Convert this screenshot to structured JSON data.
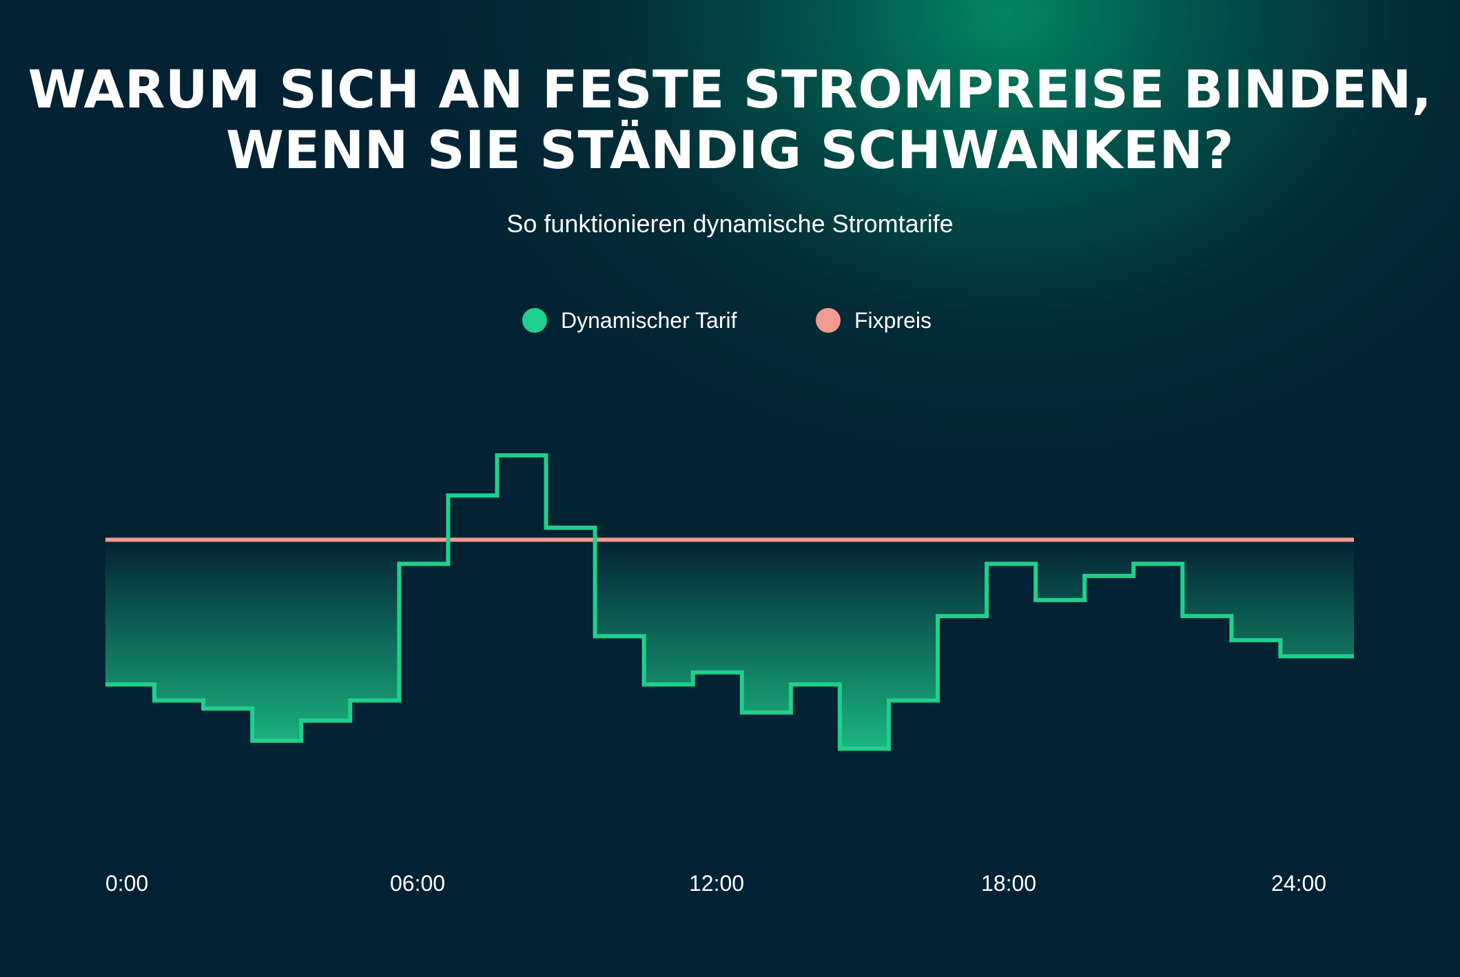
{
  "title": {
    "line1": "WARUM SICH AN FESTE STROMPREISE BINDEN,",
    "line2": "WENN SIE STÄNDIG SCHWANKEN?"
  },
  "subtitle": "So funktionieren dynamische Stromtarife",
  "legend": [
    {
      "label": "Dynamischer Tarif",
      "color": "#1fd08d"
    },
    {
      "label": "Fixpreis",
      "color": "#f39a91"
    }
  ],
  "colors": {
    "background": "#032233",
    "accent_glow": "#008c64",
    "dynamic_line": "#1fd08d",
    "fixed_line": "#f39a91",
    "text": "#ffffff"
  },
  "chart_data": {
    "type": "line",
    "step": true,
    "x_ticks": [
      "0:00",
      "06:00",
      "12:00",
      "18:00",
      "24:00"
    ],
    "xlim": [
      0,
      25.5
    ],
    "ylim": [
      0,
      12
    ],
    "grid": false,
    "legend_position": "top-center",
    "series": [
      {
        "name": "Dynamischer Tarif",
        "x": [
          0,
          1,
          2,
          3,
          4,
          5,
          6,
          7,
          8,
          9,
          10,
          11,
          12,
          13,
          14,
          15,
          16,
          17,
          18,
          19,
          20,
          21,
          22,
          23,
          24,
          25.5
        ],
        "values": [
          3.2,
          2.8,
          2.6,
          1.8,
          2.3,
          2.8,
          6.2,
          7.9,
          8.9,
          7.1,
          4.4,
          3.2,
          3.5,
          2.5,
          3.2,
          1.6,
          2.8,
          4.9,
          6.2,
          5.3,
          5.9,
          6.2,
          4.9,
          4.3,
          3.9,
          3.9
        ]
      },
      {
        "name": "Fixpreis",
        "x": [
          0,
          25.5
        ],
        "values": [
          6.8,
          6.8
        ]
      }
    ]
  }
}
